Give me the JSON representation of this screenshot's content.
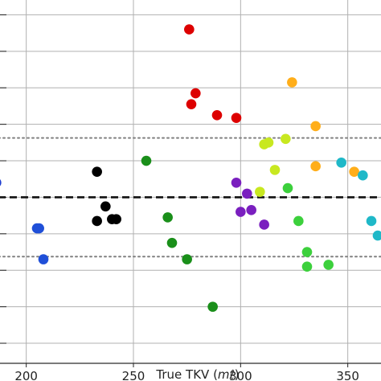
{
  "chart_data": {
    "type": "scatter",
    "xlabel_prefix": "True TKV (",
    "xlabel_unit": "mℓ",
    "xlabel_suffix": ")",
    "xlim": [
      187,
      367
    ],
    "ylim": [
      -1.0,
      1.0
    ],
    "x_ticks": [
      200,
      250,
      300,
      350
    ],
    "x_tick_labels": [
      "200",
      "250",
      "300",
      "350"
    ],
    "y_gridlines": [
      0.91,
      0.71,
      0.51,
      0.31,
      0.11,
      -0.09,
      -0.29,
      -0.49,
      -0.69,
      -0.89
    ],
    "grid": true,
    "reference_lines": [
      {
        "style": "dashed",
        "y": -0.09,
        "color": "#111111"
      },
      {
        "style": "dotted",
        "y": 0.235,
        "color": "#808080"
      },
      {
        "style": "dotted",
        "y": -0.415,
        "color": "#808080"
      }
    ],
    "points": [
      {
        "x": 186,
        "y": -0.01,
        "color": "#1f3fd0"
      },
      {
        "x": 205,
        "y": -0.26,
        "color": "#1f4fd8"
      },
      {
        "x": 206,
        "y": -0.26,
        "color": "#1f4fd8"
      },
      {
        "x": 208,
        "y": -0.43,
        "color": "#1f4fd8"
      },
      {
        "x": 233,
        "y": 0.05,
        "color": "#000000"
      },
      {
        "x": 237,
        "y": -0.14,
        "color": "#000000"
      },
      {
        "x": 233,
        "y": -0.22,
        "color": "#000000"
      },
      {
        "x": 240,
        "y": -0.21,
        "color": "#000000"
      },
      {
        "x": 242,
        "y": -0.21,
        "color": "#000000"
      },
      {
        "x": 276,
        "y": 0.83,
        "color": "#dd0000"
      },
      {
        "x": 279,
        "y": 0.48,
        "color": "#dd0000"
      },
      {
        "x": 277,
        "y": 0.42,
        "color": "#dd0000"
      },
      {
        "x": 289,
        "y": 0.36,
        "color": "#dd0000"
      },
      {
        "x": 298,
        "y": 0.345,
        "color": "#dd0000"
      },
      {
        "x": 256,
        "y": 0.11,
        "color": "#1a8f1a"
      },
      {
        "x": 266,
        "y": -0.2,
        "color": "#1a8f1a"
      },
      {
        "x": 268,
        "y": -0.34,
        "color": "#1a8f1a"
      },
      {
        "x": 275,
        "y": -0.43,
        "color": "#1a8f1a"
      },
      {
        "x": 287,
        "y": -0.69,
        "color": "#1a8f1a"
      },
      {
        "x": 298,
        "y": -0.01,
        "color": "#7a1fbf"
      },
      {
        "x": 303,
        "y": -0.07,
        "color": "#7a1fbf"
      },
      {
        "x": 305,
        "y": -0.16,
        "color": "#7a1fbf"
      },
      {
        "x": 300,
        "y": -0.17,
        "color": "#7a1fbf"
      },
      {
        "x": 311,
        "y": -0.24,
        "color": "#7a1fbf"
      },
      {
        "x": 309,
        "y": -0.06,
        "color": "#c8e820"
      },
      {
        "x": 311,
        "y": 0.2,
        "color": "#c8e820"
      },
      {
        "x": 313,
        "y": 0.21,
        "color": "#c8e820"
      },
      {
        "x": 321,
        "y": 0.23,
        "color": "#c8e820"
      },
      {
        "x": 316,
        "y": 0.06,
        "color": "#c8e820"
      },
      {
        "x": 322,
        "y": -0.04,
        "color": "#3cd03c"
      },
      {
        "x": 327,
        "y": -0.22,
        "color": "#3cd03c"
      },
      {
        "x": 331,
        "y": -0.39,
        "color": "#3cd03c"
      },
      {
        "x": 331,
        "y": -0.47,
        "color": "#3cd03c"
      },
      {
        "x": 341,
        "y": -0.46,
        "color": "#3cd03c"
      },
      {
        "x": 324,
        "y": 0.54,
        "color": "#ffae1a"
      },
      {
        "x": 335,
        "y": 0.3,
        "color": "#ffae1a"
      },
      {
        "x": 335,
        "y": 0.08,
        "color": "#ffae1a"
      },
      {
        "x": 353,
        "y": 0.05,
        "color": "#ffae1a"
      },
      {
        "x": 347,
        "y": 0.1,
        "color": "#1fb8c8"
      },
      {
        "x": 357,
        "y": 0.03,
        "color": "#1fb8c8"
      },
      {
        "x": 361,
        "y": -0.22,
        "color": "#1fb8c8"
      },
      {
        "x": 364,
        "y": -0.3,
        "color": "#1fb8c8"
      }
    ]
  }
}
